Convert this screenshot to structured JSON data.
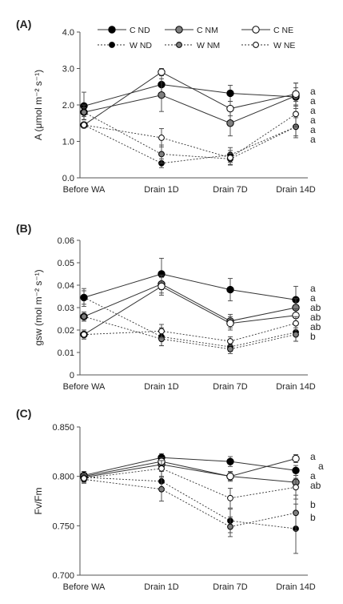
{
  "chart_data": [
    {
      "type": "line",
      "panel_label": "(A)",
      "ylabel": "A (μmol m⁻² s⁻¹)",
      "ylim": [
        0,
        4
      ],
      "yticks": [
        "0.0",
        "1.0",
        "2.0",
        "3.0",
        "4.0"
      ],
      "categories": [
        "Before WA",
        "Drain 1D",
        "Drain 7D",
        "Drain 14D"
      ],
      "series": [
        {
          "name": "C ND",
          "values": [
            1.97,
            2.56,
            2.32,
            2.22
          ],
          "err": [
            0.38,
            0.32,
            0.22,
            0.25
          ],
          "style": "c-filled"
        },
        {
          "name": "C NM",
          "values": [
            1.8,
            2.27,
            1.5,
            2.25
          ],
          "err": [
            0.2,
            0.45,
            0.35,
            0.35
          ],
          "style": "c-gray"
        },
        {
          "name": "C NE",
          "values": [
            1.45,
            2.9,
            1.9,
            2.3
          ],
          "err": [
            0.08,
            0.1,
            0.2,
            0.3
          ],
          "style": "c-open"
        },
        {
          "name": "W ND",
          "values": [
            1.45,
            0.4,
            0.63,
            1.4
          ],
          "err": [
            0.07,
            0.12,
            0.2,
            0.25
          ],
          "style": "w-filled"
        },
        {
          "name": "W NM",
          "values": [
            1.8,
            0.65,
            0.52,
            1.4
          ],
          "err": [
            0.12,
            0.25,
            0.15,
            0.3
          ],
          "style": "w-gray"
        },
        {
          "name": "W NE",
          "values": [
            1.45,
            1.1,
            0.55,
            1.75
          ],
          "err": [
            0.08,
            0.25,
            0.2,
            0.35
          ],
          "style": "w-open"
        }
      ],
      "significance": [
        "a",
        "a",
        "a",
        "a",
        "a",
        "a"
      ]
    },
    {
      "type": "line",
      "panel_label": "(B)",
      "ylabel": "gsw (mol m⁻² s⁻¹)",
      "ylim": [
        0,
        0.06
      ],
      "yticks": [
        "0",
        "0.01",
        "0.02",
        "0.03",
        "0.04",
        "0.05",
        "0.06"
      ],
      "categories": [
        "Before WA",
        "Drain 1D",
        "Drain 7D",
        "Drain 14D"
      ],
      "series": [
        {
          "name": "C ND",
          "values": [
            0.0345,
            0.045,
            0.038,
            0.0335
          ],
          "err": [
            0.004,
            0.007,
            0.005,
            0.006
          ],
          "style": "c-filled"
        },
        {
          "name": "C NM",
          "values": [
            0.026,
            0.0405,
            0.024,
            0.03
          ],
          "err": [
            0.002,
            0.004,
            0.003,
            0.004
          ],
          "style": "c-gray"
        },
        {
          "name": "C NE",
          "values": [
            0.018,
            0.0395,
            0.023,
            0.0265
          ],
          "err": [
            0.002,
            0.004,
            0.003,
            0.003
          ],
          "style": "c-open"
        },
        {
          "name": "W ND",
          "values": [
            0.0345,
            0.017,
            0.0125,
            0.019
          ],
          "err": [
            0.003,
            0.004,
            0.002,
            0.004
          ],
          "style": "w-filled"
        },
        {
          "name": "W NM",
          "values": [
            0.026,
            0.016,
            0.0115,
            0.018
          ],
          "err": [
            0.002,
            0.003,
            0.002,
            0.003
          ],
          "style": "w-gray"
        },
        {
          "name": "W NE",
          "values": [
            0.018,
            0.0195,
            0.015,
            0.023
          ],
          "err": [
            0.002,
            0.003,
            0.002,
            0.003
          ],
          "style": "w-open"
        }
      ],
      "significance": [
        "a",
        "a",
        "ab",
        "ab",
        "ab",
        "b"
      ]
    },
    {
      "type": "line",
      "panel_label": "(C)",
      "ylabel": "Fv/Fm",
      "ylim": [
        0.7,
        0.85
      ],
      "yticks": [
        "0.700",
        "0.750",
        "0.800",
        "0.850"
      ],
      "categories": [
        "Before WA",
        "Drain 1D",
        "Drain 7D",
        "Drain 14D"
      ],
      "series": [
        {
          "name": "C ND",
          "values": [
            0.801,
            0.819,
            0.815,
            0.806
          ],
          "err": [
            0.004,
            0.004,
            0.005,
            0.005
          ],
          "style": "c-filled"
        },
        {
          "name": "C NM",
          "values": [
            0.799,
            0.812,
            0.8,
            0.794
          ],
          "err": [
            0.003,
            0.004,
            0.004,
            0.004
          ],
          "style": "c-gray"
        },
        {
          "name": "C NE",
          "values": [
            0.8,
            0.815,
            0.8,
            0.818
          ],
          "err": [
            0.003,
            0.004,
            0.005,
            0.004
          ],
          "style": "c-open"
        },
        {
          "name": "W ND",
          "values": [
            0.799,
            0.795,
            0.755,
            0.747
          ],
          "err": [
            0.004,
            0.01,
            0.012,
            0.025
          ],
          "style": "w-filled"
        },
        {
          "name": "W NM",
          "values": [
            0.797,
            0.787,
            0.749,
            0.763
          ],
          "err": [
            0.004,
            0.012,
            0.01,
            0.018
          ],
          "style": "w-gray"
        },
        {
          "name": "W NE",
          "values": [
            0.798,
            0.808,
            0.778,
            0.789
          ],
          "err": [
            0.004,
            0.008,
            0.01,
            0.012
          ],
          "style": "w-open"
        }
      ],
      "significance": [
        "a",
        "a",
        "a",
        "ab",
        "b",
        "b"
      ]
    }
  ],
  "legend": {
    "entries": [
      {
        "name": "C ND",
        "style": "c-filled"
      },
      {
        "name": "C NM",
        "style": "c-gray"
      },
      {
        "name": "C NE",
        "style": "c-open"
      },
      {
        "name": "W ND",
        "style": "w-filled"
      },
      {
        "name": "W NM",
        "style": "w-gray"
      },
      {
        "name": "W NE",
        "style": "w-open"
      }
    ]
  },
  "colors": {
    "filled": "#000000",
    "gray": "#7f7f7f",
    "open": "#ffffff",
    "line": "#333333"
  }
}
